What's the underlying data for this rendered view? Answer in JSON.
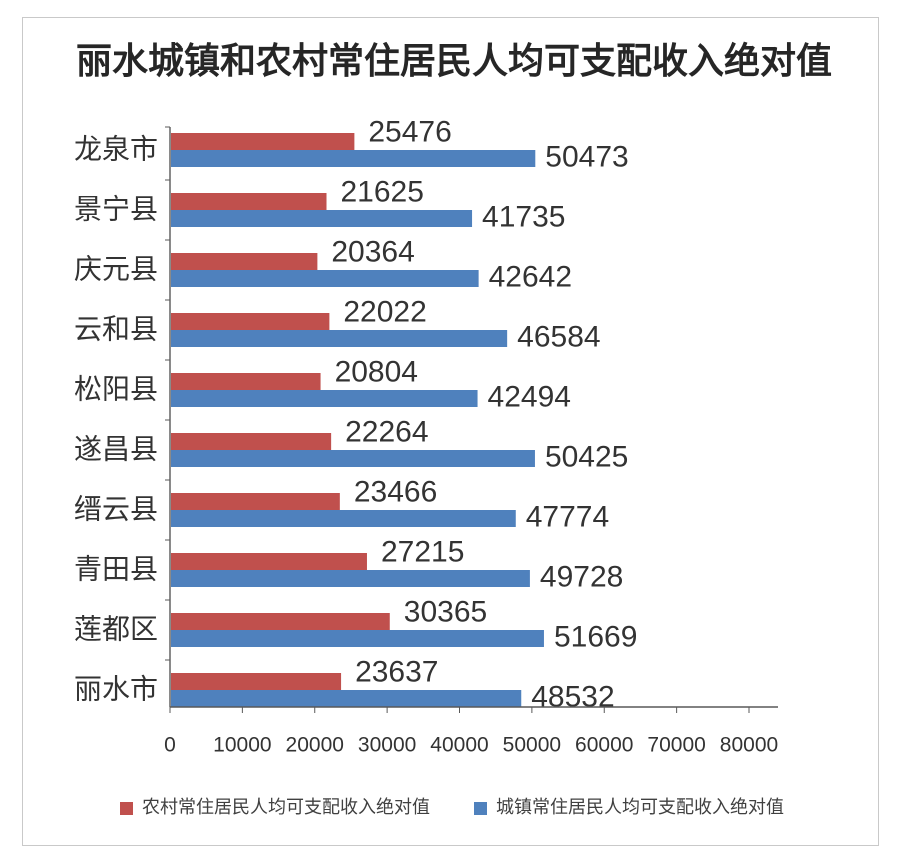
{
  "chart_data": {
    "type": "bar",
    "orientation": "horizontal",
    "title": "丽水城镇和农村常住居民人均可支配收入绝对值",
    "categories": [
      "龙泉市",
      "景宁县",
      "庆元县",
      "云和县",
      "松阳县",
      "遂昌县",
      "缙云县",
      "青田县",
      "莲都区",
      "丽水市"
    ],
    "series": [
      {
        "name": "农村常住居民人均可支配收入绝对值",
        "color": "#c0504d",
        "values": [
          25476,
          21625,
          20364,
          22022,
          20804,
          22264,
          23466,
          27215,
          30365,
          23637
        ]
      },
      {
        "name": "城镇常住居民人均可支配收入绝对值",
        "color": "#4f81bd",
        "values": [
          50473,
          41735,
          42642,
          46584,
          42494,
          50425,
          47774,
          49728,
          51669,
          48532
        ]
      }
    ],
    "xlim": [
      0,
      80000
    ],
    "xticks": [
      0,
      10000,
      20000,
      30000,
      40000,
      50000,
      60000,
      70000,
      80000
    ],
    "data_labels": true,
    "grid": false,
    "legend": "bottom"
  }
}
